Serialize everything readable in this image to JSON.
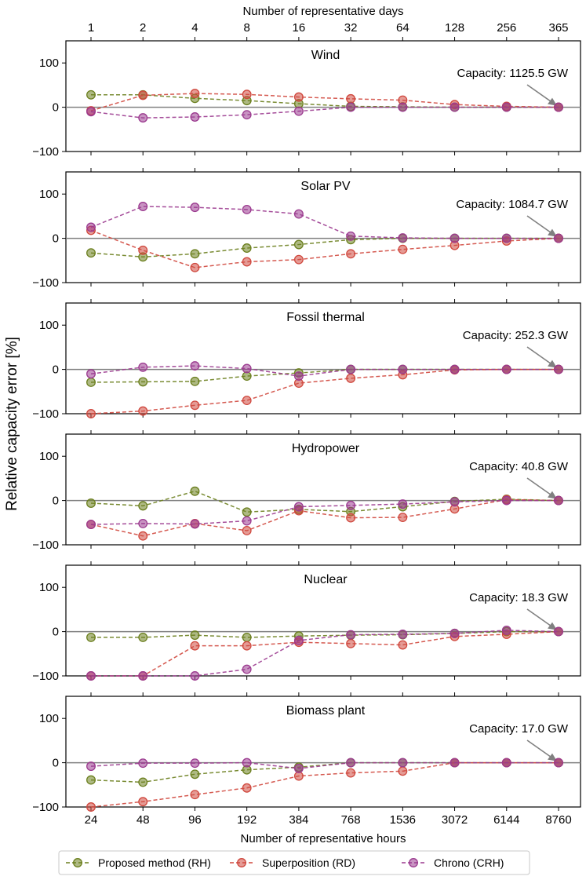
{
  "chart_data": {
    "type": "line",
    "top_axis_label": "Number of representative days",
    "top_ticks": [
      "1",
      "2",
      "4",
      "8",
      "16",
      "32",
      "64",
      "128",
      "256",
      "365"
    ],
    "xlabel": "Number of representative hours",
    "x_ticks": [
      "24",
      "48",
      "96",
      "192",
      "384",
      "768",
      "1536",
      "3072",
      "6144",
      "8760"
    ],
    "ylabel": "Relative capacity error [%]",
    "ylim": [
      -100,
      150
    ],
    "y_ticks": [
      {
        "value": 100,
        "label": "100"
      },
      {
        "value": 0,
        "label": "0"
      },
      {
        "value": -100,
        "label": "−100"
      }
    ],
    "legend": [
      {
        "name": "Proposed method (RH)",
        "color": "#6b7f1e"
      },
      {
        "name": "Superposition (RD)",
        "color": "#d0483e"
      },
      {
        "name": "Chrono (CRH)",
        "color": "#9b3a8f"
      }
    ],
    "panels": [
      {
        "title": "Wind",
        "annotation": "Capacity: 1125.5 GW",
        "series": [
          {
            "name": "Proposed method (RH)",
            "values": [
              28,
              28,
              20,
              15,
              8,
              2,
              1,
              0,
              0,
              0
            ]
          },
          {
            "name": "Superposition (RD)",
            "values": [
              -8,
              27,
              31,
              29,
              23,
              19,
              16,
              6,
              2,
              0
            ]
          },
          {
            "name": "Chrono (CRH)",
            "values": [
              -10,
              -24,
              -22,
              -17,
              -9,
              0,
              0,
              0,
              0,
              0
            ]
          }
        ]
      },
      {
        "title": "Solar PV",
        "annotation": "Capacity: 1084.7 GW",
        "series": [
          {
            "name": "Proposed method (RH)",
            "values": [
              -33,
              -42,
              -35,
              -22,
              -14,
              -3,
              0,
              0,
              0,
              0
            ]
          },
          {
            "name": "Superposition (RD)",
            "values": [
              18,
              -27,
              -66,
              -53,
              -48,
              -35,
              -25,
              -16,
              -6,
              0
            ]
          },
          {
            "name": "Chrono (CRH)",
            "values": [
              25,
              72,
              70,
              65,
              55,
              5,
              1,
              0,
              0,
              0
            ]
          }
        ]
      },
      {
        "title": "Fossil thermal",
        "annotation": "Capacity: 252.3 GW",
        "series": [
          {
            "name": "Proposed method (RH)",
            "values": [
              -29,
              -28,
              -27,
              -15,
              -8,
              0,
              0,
              0,
              0,
              0
            ]
          },
          {
            "name": "Superposition (RD)",
            "values": [
              -100,
              -94,
              -81,
              -70,
              -31,
              -20,
              -12,
              -1,
              0,
              0
            ]
          },
          {
            "name": "Chrono (CRH)",
            "values": [
              -10,
              5,
              8,
              2,
              -15,
              0,
              0,
              0,
              0,
              0
            ]
          }
        ]
      },
      {
        "title": "Hydropower",
        "annotation": "Capacity: 40.8 GW",
        "series": [
          {
            "name": "Proposed method (RH)",
            "values": [
              -6,
              -12,
              21,
              -26,
              -20,
              -25,
              -14,
              -2,
              3,
              0
            ]
          },
          {
            "name": "Superposition (RD)",
            "values": [
              -54,
              -80,
              -52,
              -68,
              -23,
              -39,
              -38,
              -19,
              2,
              0
            ]
          },
          {
            "name": "Chrono (CRH)",
            "values": [
              -54,
              -52,
              -53,
              -46,
              -14,
              -11,
              -8,
              -3,
              0,
              0
            ]
          }
        ]
      },
      {
        "title": "Nuclear",
        "annotation": "Capacity: 18.3 GW",
        "series": [
          {
            "name": "Proposed method (RH)",
            "values": [
              -13,
              -13,
              -8,
              -13,
              -10,
              -8,
              -7,
              -4,
              0,
              0
            ]
          },
          {
            "name": "Superposition (RD)",
            "values": [
              -100,
              -100,
              -32,
              -32,
              -24,
              -27,
              -30,
              -11,
              -6,
              0
            ]
          },
          {
            "name": "Chrono (CRH)",
            "values": [
              -100,
              -100,
              -100,
              -85,
              -20,
              -7,
              -6,
              -4,
              3,
              0
            ]
          }
        ]
      },
      {
        "title": "Biomass plant",
        "annotation": "Capacity: 17.0 GW",
        "series": [
          {
            "name": "Proposed method (RH)",
            "values": [
              -39,
              -44,
              -26,
              -16,
              -10,
              0,
              0,
              0,
              0,
              0
            ]
          },
          {
            "name": "Superposition (RD)",
            "values": [
              -100,
              -88,
              -72,
              -57,
              -30,
              -23,
              -19,
              0,
              0,
              0
            ]
          },
          {
            "name": "Chrono (CRH)",
            "values": [
              -8,
              -1,
              -1,
              0,
              -13,
              0,
              0,
              0,
              0,
              0
            ]
          }
        ]
      }
    ]
  }
}
